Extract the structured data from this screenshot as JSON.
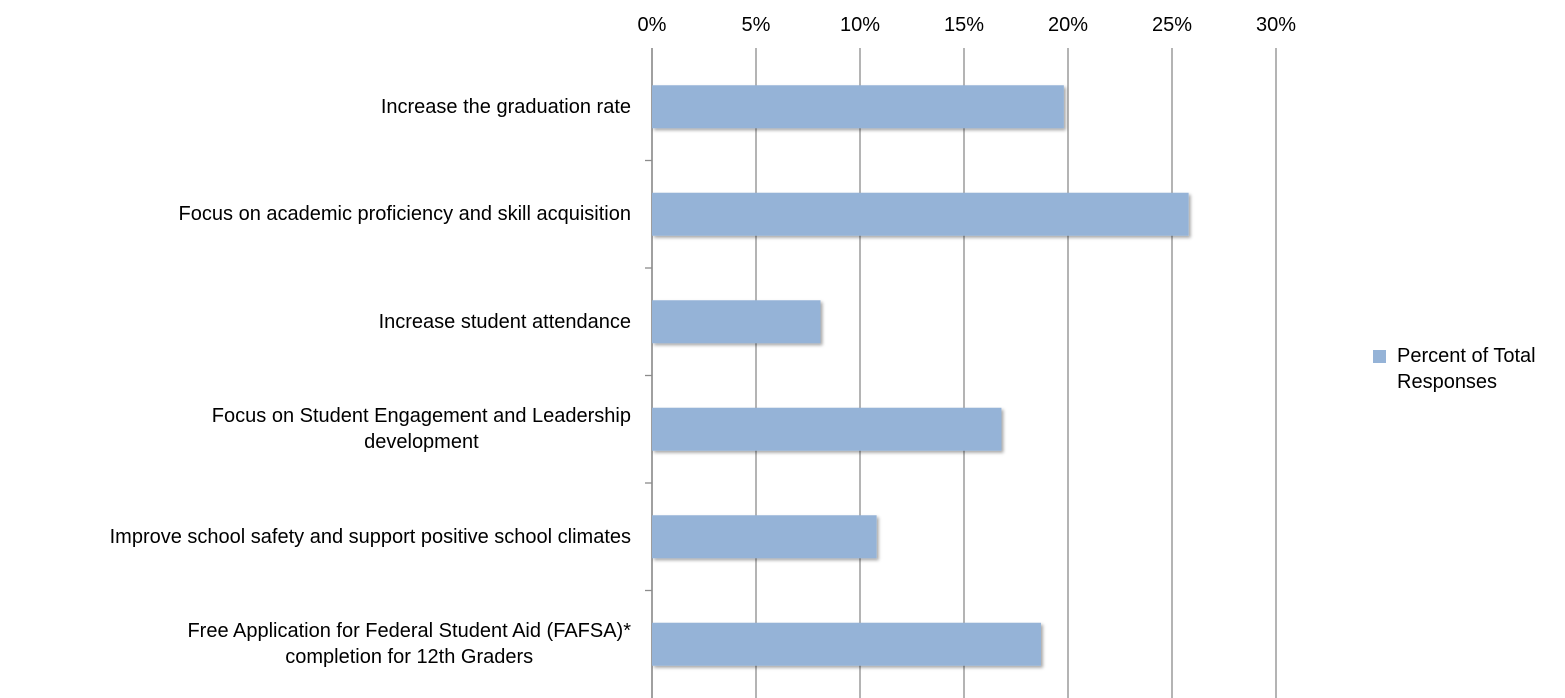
{
  "chart_data": {
    "type": "bar",
    "orientation": "horizontal",
    "categories": [
      [
        "Increase the graduation rate"
      ],
      [
        "Focus on academic proficiency and skill acquisition"
      ],
      [
        "Increase student attendance"
      ],
      [
        "Focus on Student Engagement and Leadership",
        "development"
      ],
      [
        "Improve school safety and support positive school climates"
      ],
      [
        "Free Application for Federal Student Aid (FAFSA)*",
        "completion for 12th Graders"
      ]
    ],
    "series": [
      {
        "name": "Percent of Total Responses",
        "color": "#95b3d7",
        "values": [
          19.8,
          25.8,
          8.1,
          16.8,
          10.8,
          18.7
        ]
      }
    ],
    "xlim": [
      0,
      30
    ],
    "xticks": [
      {
        "value": 0,
        "label": "0%"
      },
      {
        "value": 5,
        "label": "5%"
      },
      {
        "value": 10,
        "label": "10%"
      },
      {
        "value": 15,
        "label": "15%"
      },
      {
        "value": 20,
        "label": "20%"
      },
      {
        "value": 25,
        "label": "25%"
      },
      {
        "value": 30,
        "label": "30%"
      }
    ],
    "grid": true,
    "legend": "right"
  }
}
